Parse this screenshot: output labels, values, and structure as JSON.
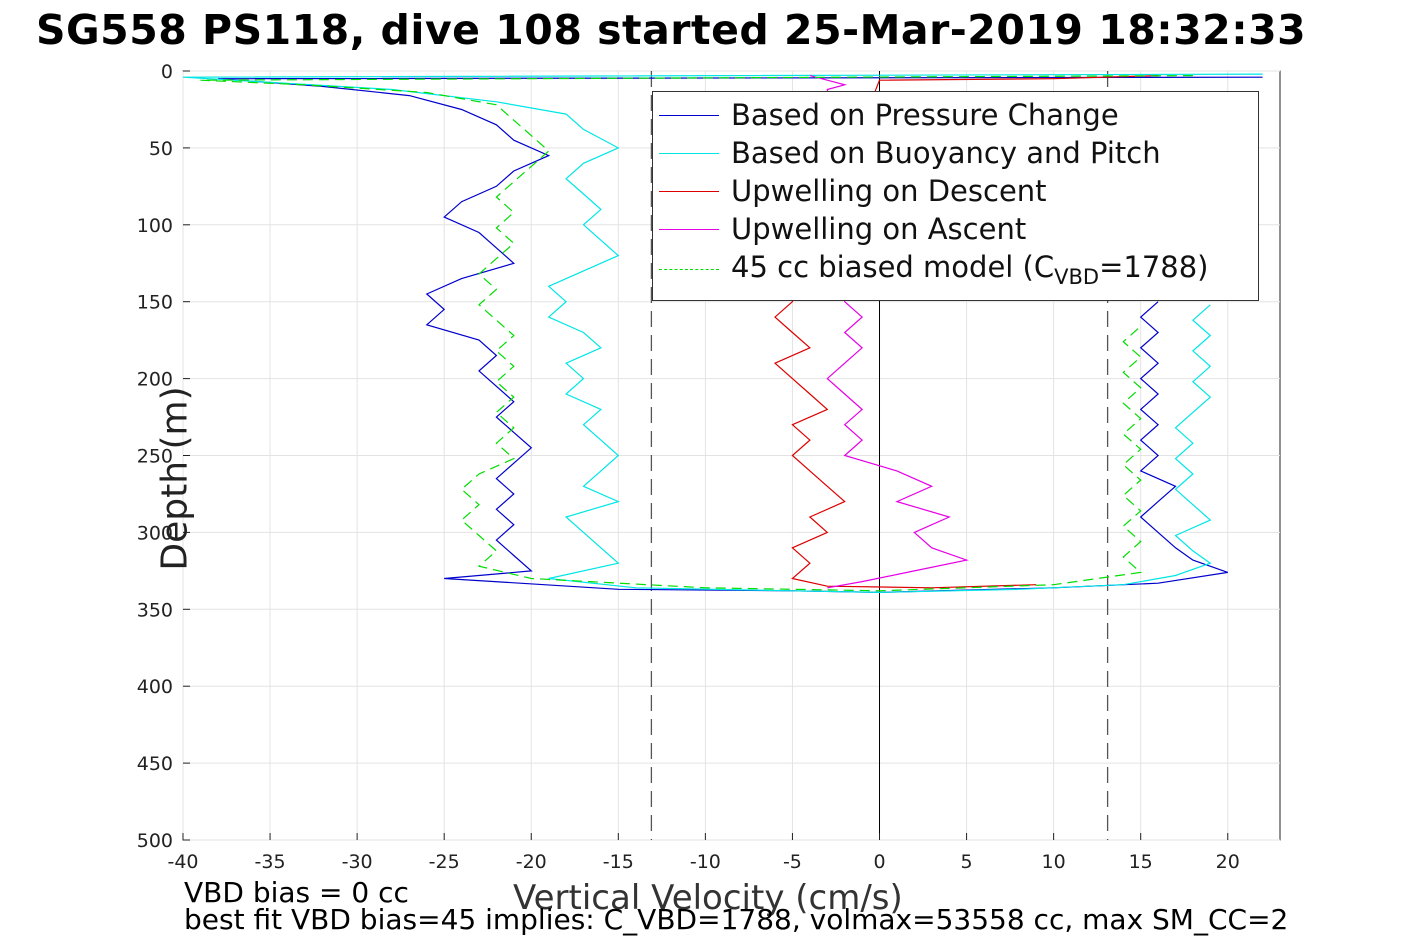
{
  "title": "SG558 PS118, dive 108 started 25-Mar-2019 18:32:33",
  "footer": {
    "line1": "VBD bias = 0 cc",
    "line2": "best fit VBD bias=45 implies: C_VBD=1788, volmax=53558 cc, max SM_CC=2"
  },
  "legend": [
    {
      "label": "Based on Pressure Change",
      "color": "#0000cc",
      "dash": "solid"
    },
    {
      "label": "Based on Buoyancy and Pitch",
      "color": "#00e6e6",
      "dash": "solid"
    },
    {
      "label": "Upwelling on Descent",
      "color": "#dd0000",
      "dash": "solid"
    },
    {
      "label": "Upwelling on Ascent",
      "color": "#e600e6",
      "dash": "solid"
    },
    {
      "label_pre": "45 cc biased model (C",
      "label_sub": "VBD",
      "label_post": "=1788)",
      "color": "#00dd00",
      "dash": "dashed"
    }
  ],
  "chart_data": {
    "type": "line",
    "title": "SG558 PS118, dive 108 started 25-Mar-2019 18:32:33",
    "xlabel": "Vertical Velocity (cm/s)",
    "ylabel": "Depth (m)",
    "xlim": [
      -40,
      23
    ],
    "ylim": [
      500,
      0
    ],
    "y_reversed": true,
    "grid": true,
    "xticks": [
      -40,
      -35,
      -30,
      -25,
      -20,
      -15,
      -10,
      -5,
      0,
      5,
      10,
      15,
      20
    ],
    "yticks": [
      0,
      50,
      100,
      150,
      200,
      250,
      300,
      350,
      400,
      450,
      500
    ],
    "reference_lines": {
      "vertical_dashed": [
        -13.1,
        13.1
      ],
      "vertical_solid": [
        0
      ]
    },
    "legend_position": "top-right",
    "series": [
      {
        "name": "Based on Pressure Change",
        "color": "#0000cc",
        "style": "solid",
        "points": [
          [
            22,
            4
          ],
          [
            -38,
            5
          ],
          [
            -32,
            10
          ],
          [
            -27,
            16
          ],
          [
            -24,
            25
          ],
          [
            -22,
            35
          ],
          [
            -21,
            45
          ],
          [
            -19,
            55
          ],
          [
            -21,
            65
          ],
          [
            -22,
            75
          ],
          [
            -24,
            85
          ],
          [
            -25,
            95
          ],
          [
            -23,
            105
          ],
          [
            -22,
            115
          ],
          [
            -21,
            125
          ],
          [
            -24,
            135
          ],
          [
            -26,
            145
          ],
          [
            -25,
            155
          ],
          [
            -26,
            165
          ],
          [
            -23,
            175
          ],
          [
            -22,
            185
          ],
          [
            -23,
            195
          ],
          [
            -22,
            205
          ],
          [
            -21,
            215
          ],
          [
            -22,
            225
          ],
          [
            -21,
            235
          ],
          [
            -20,
            245
          ],
          [
            -21,
            255
          ],
          [
            -22,
            265
          ],
          [
            -21,
            275
          ],
          [
            -22,
            285
          ],
          [
            -21,
            295
          ],
          [
            -22,
            305
          ],
          [
            -21,
            315
          ],
          [
            -20,
            325
          ],
          [
            -25,
            330
          ],
          [
            -15,
            337
          ],
          [
            -5,
            338
          ],
          [
            0,
            339
          ],
          [
            10,
            336
          ],
          [
            16,
            333
          ],
          [
            20,
            326
          ],
          [
            18,
            318
          ],
          [
            17,
            310
          ],
          [
            16,
            300
          ],
          [
            15,
            290
          ],
          [
            16,
            280
          ],
          [
            17,
            270
          ],
          [
            15,
            260
          ],
          [
            16,
            250
          ],
          [
            15,
            240
          ],
          [
            16,
            230
          ],
          [
            15,
            220
          ],
          [
            16,
            210
          ],
          [
            15,
            200
          ],
          [
            16,
            190
          ],
          [
            15,
            180
          ],
          [
            16,
            170
          ],
          [
            15,
            160
          ],
          [
            16,
            150
          ]
        ]
      },
      {
        "name": "Based on Buoyancy and Pitch",
        "color": "#00e6e6",
        "style": "solid",
        "points": [
          [
            22,
            2
          ],
          [
            -40,
            4
          ],
          [
            -34,
            8
          ],
          [
            -28,
            12
          ],
          [
            -22,
            20
          ],
          [
            -18,
            28
          ],
          [
            -17,
            38
          ],
          [
            -15,
            50
          ],
          [
            -17,
            60
          ],
          [
            -18,
            70
          ],
          [
            -17,
            80
          ],
          [
            -16,
            90
          ],
          [
            -17,
            100
          ],
          [
            -16,
            110
          ],
          [
            -15,
            120
          ],
          [
            -17,
            130
          ],
          [
            -19,
            140
          ],
          [
            -18,
            150
          ],
          [
            -19,
            160
          ],
          [
            -17,
            170
          ],
          [
            -16,
            180
          ],
          [
            -18,
            190
          ],
          [
            -17,
            200
          ],
          [
            -18,
            210
          ],
          [
            -16,
            220
          ],
          [
            -17,
            230
          ],
          [
            -16,
            240
          ],
          [
            -15,
            250
          ],
          [
            -16,
            260
          ],
          [
            -17,
            270
          ],
          [
            -15,
            280
          ],
          [
            -18,
            290
          ],
          [
            -17,
            300
          ],
          [
            -16,
            310
          ],
          [
            -15,
            320
          ],
          [
            -19,
            330
          ],
          [
            -14,
            336
          ],
          [
            -5,
            338
          ],
          [
            0,
            339
          ],
          [
            8,
            337
          ],
          [
            14,
            334
          ],
          [
            17,
            328
          ],
          [
            19,
            320
          ],
          [
            18,
            312
          ],
          [
            17,
            302
          ],
          [
            19,
            292
          ],
          [
            18,
            282
          ],
          [
            17,
            272
          ],
          [
            18,
            262
          ],
          [
            17,
            252
          ],
          [
            18,
            242
          ],
          [
            17,
            232
          ],
          [
            18,
            222
          ],
          [
            19,
            212
          ],
          [
            18,
            202
          ],
          [
            19,
            192
          ],
          [
            18,
            182
          ],
          [
            19,
            172
          ],
          [
            18,
            162
          ],
          [
            19,
            152
          ]
        ]
      },
      {
        "name": "Upwelling on Descent",
        "color": "#dd0000",
        "style": "solid",
        "points": [
          [
            16,
            3
          ],
          [
            10,
            5
          ],
          [
            0,
            6
          ],
          [
            -5,
            150
          ],
          [
            -6,
            160
          ],
          [
            -5,
            170
          ],
          [
            -4,
            180
          ],
          [
            -6,
            190
          ],
          [
            -5,
            200
          ],
          [
            -4,
            210
          ],
          [
            -3,
            220
          ],
          [
            -5,
            230
          ],
          [
            -4,
            240
          ],
          [
            -5,
            250
          ],
          [
            -4,
            260
          ],
          [
            -3,
            270
          ],
          [
            -2,
            280
          ],
          [
            -4,
            290
          ],
          [
            -3,
            300
          ],
          [
            -5,
            310
          ],
          [
            -4,
            320
          ],
          [
            -5,
            330
          ],
          [
            -3,
            335
          ],
          [
            3,
            336
          ],
          [
            9,
            334
          ]
        ]
      },
      {
        "name": "Upwelling on Ascent",
        "color": "#e600e6",
        "style": "solid",
        "points": [
          [
            -4,
            3
          ],
          [
            -3,
            6
          ],
          [
            -2,
            9
          ],
          [
            -3,
            12
          ],
          [
            -2,
            150
          ],
          [
            -1,
            160
          ],
          [
            -2,
            170
          ],
          [
            -1,
            180
          ],
          [
            -2,
            190
          ],
          [
            -3,
            200
          ],
          [
            -2,
            210
          ],
          [
            -1,
            220
          ],
          [
            -2,
            230
          ],
          [
            -1,
            240
          ],
          [
            -2,
            250
          ],
          [
            1,
            260
          ],
          [
            3,
            270
          ],
          [
            1,
            280
          ],
          [
            4,
            290
          ],
          [
            2,
            300
          ],
          [
            3,
            310
          ],
          [
            5,
            318
          ],
          [
            2,
            325
          ],
          [
            -1,
            332
          ],
          [
            -3,
            336
          ]
        ]
      },
      {
        "name": "45 cc biased model (CVBD=1788)",
        "color": "#00dd00",
        "style": "dashed",
        "points": [
          [
            18,
            3
          ],
          [
            -39,
            6
          ],
          [
            -33,
            9
          ],
          [
            -26,
            14
          ],
          [
            -22,
            22
          ],
          [
            -21,
            32
          ],
          [
            -20,
            42
          ],
          [
            -19,
            52
          ],
          [
            -20,
            62
          ],
          [
            -21,
            72
          ],
          [
            -22,
            82
          ],
          [
            -21,
            92
          ],
          [
            -22,
            102
          ],
          [
            -21,
            112
          ],
          [
            -22,
            122
          ],
          [
            -23,
            132
          ],
          [
            -22,
            142
          ],
          [
            -23,
            152
          ],
          [
            -22,
            162
          ],
          [
            -21,
            172
          ],
          [
            -22,
            182
          ],
          [
            -21,
            192
          ],
          [
            -22,
            202
          ],
          [
            -21,
            212
          ],
          [
            -22,
            222
          ],
          [
            -21,
            232
          ],
          [
            -22,
            242
          ],
          [
            -21,
            252
          ],
          [
            -23,
            262
          ],
          [
            -24,
            272
          ],
          [
            -23,
            282
          ],
          [
            -24,
            292
          ],
          [
            -23,
            302
          ],
          [
            -22,
            312
          ],
          [
            -23,
            322
          ],
          [
            -20,
            330
          ],
          [
            -10,
            336
          ],
          [
            0,
            338
          ],
          [
            10,
            334
          ],
          [
            15,
            326
          ],
          [
            14,
            316
          ],
          [
            15,
            306
          ],
          [
            14,
            296
          ],
          [
            15,
            286
          ],
          [
            14,
            276
          ],
          [
            15,
            266
          ],
          [
            14,
            256
          ],
          [
            15,
            246
          ],
          [
            14,
            236
          ],
          [
            15,
            226
          ],
          [
            14,
            216
          ],
          [
            15,
            206
          ],
          [
            14,
            196
          ],
          [
            15,
            186
          ],
          [
            14,
            176
          ],
          [
            15,
            166
          ]
        ]
      }
    ]
  }
}
